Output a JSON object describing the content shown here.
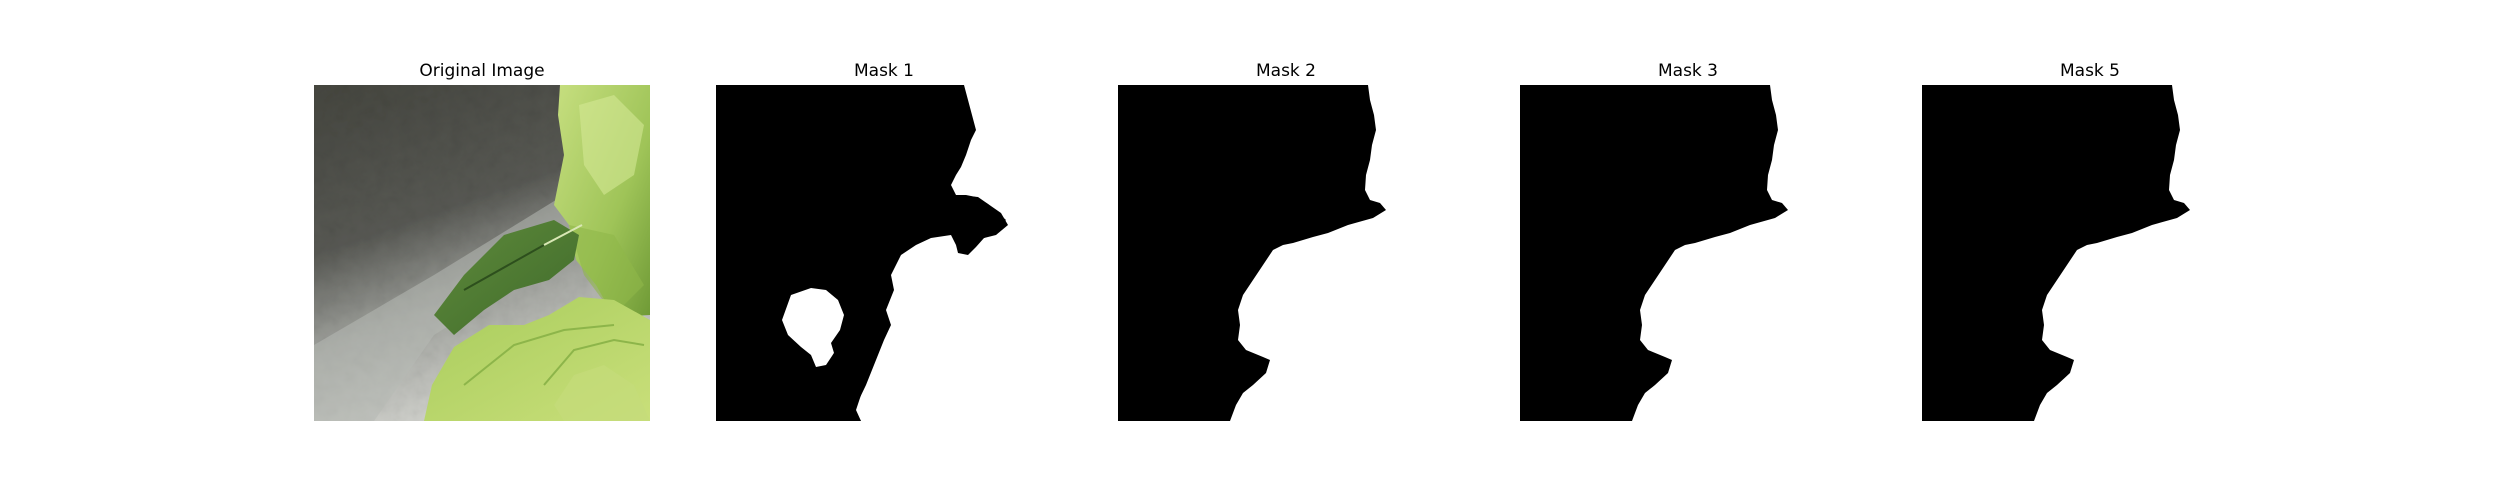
{
  "figure": {
    "panels": [
      {
        "title": "Original Image",
        "kind": "photo"
      },
      {
        "title": "Mask 1",
        "kind": "mask"
      },
      {
        "title": "Mask 2",
        "kind": "mask"
      },
      {
        "title": "Mask 3",
        "kind": "mask"
      },
      {
        "title": "Mask 5",
        "kind": "mask"
      }
    ]
  },
  "colors": {
    "mask_foreground": "#ffffff",
    "mask_background": "#000000",
    "wall_dark": "#4a4b47",
    "wall_light": "#c9cbc6",
    "leaf_light": "#b9d86a",
    "leaf_dark": "#4e7a32"
  }
}
